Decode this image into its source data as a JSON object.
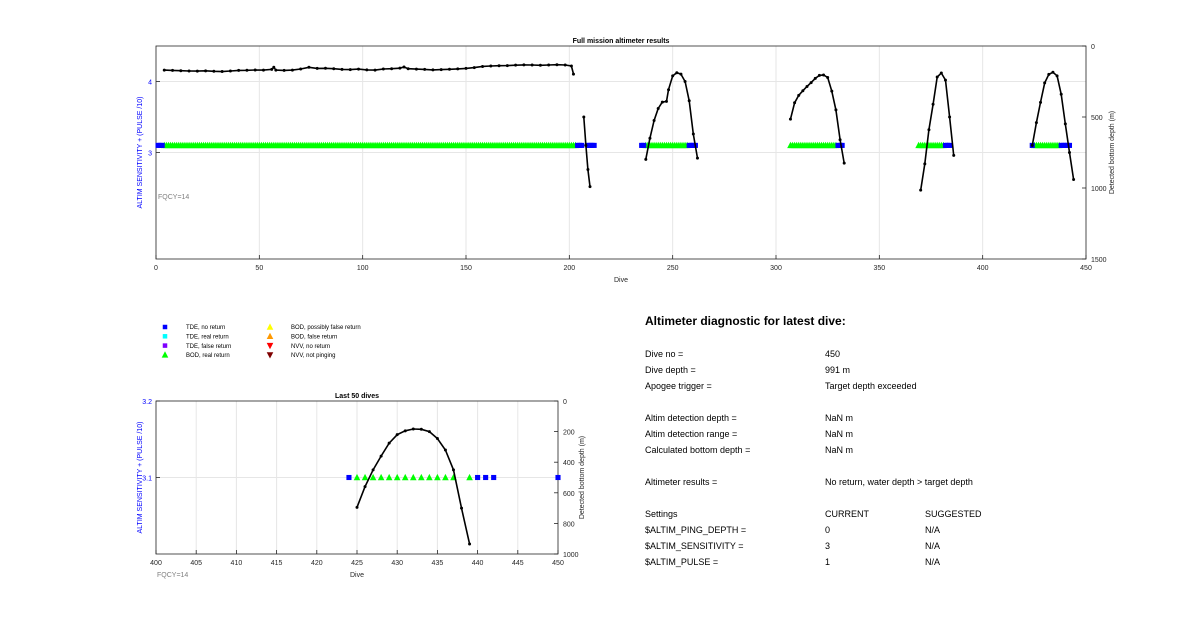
{
  "colors": {
    "line": "#000000",
    "tde_no_return": "#0000ff",
    "tde_real_return": "#00ffff",
    "tde_false_return": "#7f00ff",
    "bod_real_return": "#00ff00",
    "bod_possibly_false": "#ffff00",
    "bod_false_return": "#ff9900",
    "nvv_no_return": "#ff0000",
    "nvv_not_pinging": "#7f0000",
    "left_axis_label": "#0000ff",
    "fqcy_text": "#808080",
    "grid": "#e6e6e6"
  },
  "legend": [
    {
      "label": "TDE, no return",
      "marker": "square",
      "color_key": "tde_no_return"
    },
    {
      "label": "TDE, real return",
      "marker": "square",
      "color_key": "tde_real_return"
    },
    {
      "label": "TDE, false return",
      "marker": "square",
      "color_key": "tde_false_return"
    },
    {
      "label": "BOD, real return",
      "marker": "triangle-up",
      "color_key": "bod_real_return"
    },
    {
      "label": "BOD, possibly false return",
      "marker": "triangle-up",
      "color_key": "bod_possibly_false"
    },
    {
      "label": "BOD, false return",
      "marker": "triangle-up",
      "color_key": "bod_false_return"
    },
    {
      "label": "NVV, no return",
      "marker": "triangle-down",
      "color_key": "nvv_no_return"
    },
    {
      "label": "NVV, not pinging",
      "marker": "triangle-down",
      "color_key": "nvv_not_pinging"
    }
  ],
  "chart_data": [
    {
      "type": "scatter",
      "title": "Full mission altimeter results",
      "xlabel": "Dive",
      "ylabel_left": "ALTIM SENSITIVITY + (PULSE /10)",
      "ylabel_right": "Detected bottom depth (m)",
      "annotation": "FQCY=14",
      "xlim": [
        0,
        450
      ],
      "xticks": [
        0,
        50,
        100,
        150,
        200,
        250,
        300,
        350,
        400,
        450
      ],
      "ylim_left": [
        1.5,
        4.5
      ],
      "yticks_left": [
        3,
        4
      ],
      "ylim_right": [
        1500,
        0
      ],
      "yticks_right": [
        0,
        500,
        1000,
        1500
      ],
      "grid": true,
      "depth_segments": [
        [
          [
            4,
            170
          ],
          [
            8,
            172
          ],
          [
            12,
            174
          ],
          [
            16,
            176
          ],
          [
            20,
            177
          ],
          [
            24,
            175
          ],
          [
            28,
            178
          ],
          [
            32,
            180
          ],
          [
            36,
            176
          ],
          [
            40,
            172
          ],
          [
            44,
            171
          ],
          [
            48,
            169
          ],
          [
            52,
            170
          ],
          [
            56,
            165
          ],
          [
            57,
            150
          ],
          [
            58,
            170
          ],
          [
            62,
            172
          ],
          [
            66,
            170
          ],
          [
            70,
            162
          ],
          [
            74,
            150
          ],
          [
            78,
            158
          ],
          [
            82,
            157
          ],
          [
            86,
            160
          ],
          [
            90,
            165
          ],
          [
            94,
            166
          ],
          [
            98,
            163
          ],
          [
            102,
            168
          ],
          [
            106,
            170
          ],
          [
            110,
            162
          ],
          [
            114,
            160
          ],
          [
            118,
            156
          ],
          [
            120,
            148
          ],
          [
            122,
            160
          ],
          [
            126,
            163
          ],
          [
            130,
            165
          ],
          [
            134,
            168
          ],
          [
            138,
            166
          ],
          [
            142,
            164
          ],
          [
            146,
            161
          ],
          [
            150,
            158
          ],
          [
            154,
            152
          ],
          [
            158,
            144
          ],
          [
            162,
            141
          ],
          [
            166,
            139
          ],
          [
            170,
            138
          ],
          [
            174,
            135
          ],
          [
            178,
            133
          ],
          [
            182,
            134
          ],
          [
            186,
            136
          ],
          [
            190,
            134
          ],
          [
            194,
            132
          ],
          [
            198,
            134
          ],
          [
            201,
            141
          ],
          [
            202,
            198
          ]
        ],
        [
          [
            207,
            500
          ],
          [
            208,
            700
          ],
          [
            209,
            870
          ],
          [
            210,
            990
          ]
        ],
        [
          [
            237,
            798
          ],
          [
            239,
            650
          ],
          [
            241,
            525
          ],
          [
            243,
            440
          ],
          [
            245,
            395
          ],
          [
            247,
            390
          ],
          [
            248,
            308
          ],
          [
            250,
            210
          ],
          [
            252,
            188
          ],
          [
            254,
            198
          ],
          [
            256,
            250
          ],
          [
            258,
            386
          ],
          [
            260,
            620
          ],
          [
            262,
            790
          ]
        ],
        [
          [
            307,
            515
          ],
          [
            309,
            400
          ],
          [
            311,
            348
          ],
          [
            313,
            315
          ],
          [
            315,
            285
          ],
          [
            317,
            258
          ],
          [
            319,
            228
          ],
          [
            321,
            207
          ],
          [
            323,
            204
          ],
          [
            325,
            222
          ],
          [
            327,
            318
          ],
          [
            329,
            450
          ],
          [
            331,
            660
          ],
          [
            333,
            825
          ]
        ],
        [
          [
            370,
            1015
          ],
          [
            372,
            830
          ],
          [
            374,
            590
          ],
          [
            376,
            410
          ],
          [
            378,
            218
          ],
          [
            380,
            190
          ],
          [
            382,
            240
          ],
          [
            384,
            500
          ],
          [
            386,
            770
          ]
        ],
        [
          [
            424,
            700
          ],
          [
            426,
            540
          ],
          [
            428,
            397
          ],
          [
            430,
            260
          ],
          [
            432,
            200
          ],
          [
            434,
            185
          ],
          [
            436,
            210
          ],
          [
            438,
            340
          ],
          [
            440,
            548
          ],
          [
            442,
            750
          ],
          [
            444,
            940
          ]
        ]
      ],
      "tde_no_return_dives": [
        1,
        2,
        3,
        204,
        205,
        206,
        209,
        210,
        211,
        212,
        235,
        236,
        258,
        259,
        260,
        261,
        330,
        331,
        332,
        382,
        383,
        384,
        424,
        438,
        439,
        440,
        441,
        442
      ],
      "bod_real_return_ranges": [
        [
          4,
          203
        ],
        [
          237,
          257
        ],
        [
          307,
          329
        ],
        [
          369,
          381
        ],
        [
          425,
          437
        ]
      ],
      "level_value": 3.1
    },
    {
      "type": "scatter",
      "title": "Last 50 dives",
      "xlabel": "Dive",
      "ylabel_left": "ALTIM SENSITIVITY + (PULSE /10)",
      "ylabel_right": "Detected bottom depth (m)",
      "annotation": "FQCY=14",
      "xlim": [
        400,
        450
      ],
      "xticks": [
        400,
        405,
        410,
        415,
        420,
        425,
        430,
        435,
        440,
        445,
        450
      ],
      "ylim_left": [
        3.0,
        3.2
      ],
      "yticks_left": [
        3.1,
        3.2
      ],
      "ylim_right": [
        1000,
        0
      ],
      "yticks_right": [
        0,
        200,
        400,
        600,
        800,
        1000
      ],
      "grid": true,
      "depth": [
        [
          425,
          695
        ],
        [
          426,
          560
        ],
        [
          427,
          450
        ],
        [
          428,
          360
        ],
        [
          429,
          275
        ],
        [
          430,
          220
        ],
        [
          431,
          195
        ],
        [
          432,
          183
        ],
        [
          433,
          185
        ],
        [
          434,
          200
        ],
        [
          435,
          245
        ],
        [
          436,
          320
        ],
        [
          437,
          450
        ],
        [
          438,
          700
        ],
        [
          439,
          935
        ]
      ],
      "tde_no_return_dives": [
        424,
        440,
        441,
        442,
        450
      ],
      "bod_real_return_dives": [
        425,
        426,
        427,
        428,
        429,
        430,
        431,
        432,
        433,
        434,
        435,
        436,
        437,
        439
      ],
      "level_value": 3.1
    }
  ],
  "diagnostic": {
    "title": "Altimeter diagnostic for latest dive:",
    "dive_no_label": "Dive no =",
    "dive_no_value": "450",
    "dive_depth_label": "Dive depth =",
    "dive_depth_value": "991 m",
    "apogee_label": "Apogee trigger =",
    "apogee_value": "Target depth exceeded",
    "detection_depth_label": "Altim detection depth =",
    "detection_depth_value": "NaN m",
    "detection_range_label": "Altim detection range =",
    "detection_range_value": "NaN m",
    "bottom_depth_label": "Calculated bottom depth =",
    "bottom_depth_value": "NaN m",
    "results_label": "Altimeter results =",
    "results_value": "No return, water depth > target depth",
    "settings_label": "Settings",
    "current_label": "CURRENT",
    "suggested_label": "SUGGESTED",
    "settings": [
      {
        "name": "$ALTIM_PING_DEPTH =",
        "current": "0",
        "suggested": "N/A"
      },
      {
        "name": "$ALTIM_SENSITIVITY =",
        "current": "3",
        "suggested": "N/A"
      },
      {
        "name": "$ALTIM_PULSE =",
        "current": "1",
        "suggested": "N/A"
      }
    ]
  }
}
